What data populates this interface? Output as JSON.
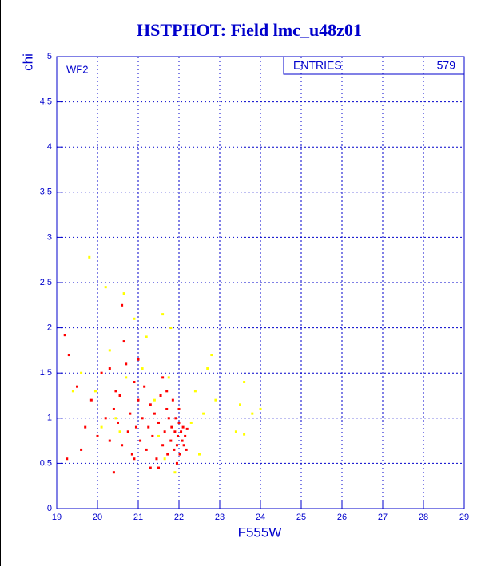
{
  "chart_data": {
    "type": "scatter",
    "title": "HSTPHOT: Field lmc_u48z01",
    "x_label": "F555W",
    "y_label": "chi",
    "annotation": "WF2",
    "stats_box": {
      "label": "ENTRIES",
      "value": 579
    },
    "xlim": [
      19,
      29
    ],
    "ylim": [
      0,
      5
    ],
    "xticks": [
      19,
      20,
      21,
      22,
      23,
      24,
      25,
      26,
      27,
      28,
      29
    ],
    "yticks": [
      0,
      0.5,
      1,
      1.5,
      2,
      2.5,
      3,
      3.5,
      4,
      4.5,
      5
    ],
    "grid": true,
    "series": [
      {
        "color": "#ff0000",
        "x": [
          19.2,
          19.3,
          19.25,
          19.5,
          19.7,
          19.85,
          20.0,
          20.1,
          20.2,
          20.3,
          20.4,
          20.45,
          20.5,
          20.55,
          20.6,
          20.6,
          20.7,
          20.75,
          20.8,
          20.85,
          20.9,
          20.95,
          21.0,
          21.05,
          21.1,
          21.15,
          21.2,
          21.25,
          21.3,
          21.35,
          21.4,
          21.45,
          21.5,
          21.55,
          21.6,
          21.65,
          21.7,
          21.72,
          21.75,
          21.8,
          21.82,
          21.85,
          21.88,
          21.9,
          21.92,
          21.95,
          21.97,
          22.0,
          22.02,
          22.05,
          22.08,
          22.1,
          22.12,
          22.15,
          22.18,
          22.2,
          21.3,
          20.4,
          21.95,
          21.6,
          20.3,
          19.6,
          20.65,
          21.0,
          21.5,
          22.0,
          21.7,
          20.9
        ],
        "y": [
          1.92,
          1.7,
          0.55,
          1.35,
          0.9,
          1.2,
          0.8,
          1.5,
          1.0,
          0.75,
          1.1,
          1.3,
          0.95,
          1.25,
          2.25,
          0.7,
          1.6,
          0.85,
          1.05,
          0.6,
          1.4,
          0.9,
          1.2,
          0.75,
          1.0,
          1.35,
          0.65,
          0.9,
          1.15,
          0.8,
          1.05,
          0.55,
          0.95,
          1.25,
          0.7,
          0.85,
          1.1,
          0.6,
          1.0,
          0.75,
          0.9,
          1.2,
          0.65,
          0.85,
          1.0,
          0.7,
          0.8,
          0.95,
          0.6,
          0.85,
          0.75,
          0.9,
          0.7,
          0.8,
          0.65,
          0.88,
          0.45,
          0.4,
          0.5,
          1.45,
          1.55,
          0.65,
          1.85,
          1.65,
          0.45,
          1.1,
          1.3,
          0.55
        ]
      },
      {
        "color": "#ffff00",
        "x": [
          19.8,
          20.2,
          20.65,
          21.6,
          21.8,
          22.8,
          22.7,
          23.6,
          23.5,
          23.8,
          23.4,
          23.6,
          24.0,
          22.6,
          22.9,
          19.6,
          19.95,
          20.3,
          20.45,
          20.7,
          20.9,
          21.1,
          21.4,
          21.5,
          21.75,
          21.9,
          22.3,
          22.4,
          20.1,
          19.4,
          22.5,
          21.2,
          20.55,
          21.65
        ],
        "y": [
          2.78,
          2.45,
          2.38,
          2.15,
          2.0,
          1.7,
          1.55,
          1.4,
          1.15,
          1.05,
          0.85,
          0.82,
          1.1,
          1.05,
          1.2,
          1.5,
          1.3,
          1.75,
          1.0,
          1.45,
          2.1,
          1.55,
          1.2,
          0.8,
          1.45,
          0.4,
          0.95,
          1.3,
          0.9,
          1.3,
          0.6,
          1.9,
          0.85,
          0.55
        ]
      }
    ]
  }
}
